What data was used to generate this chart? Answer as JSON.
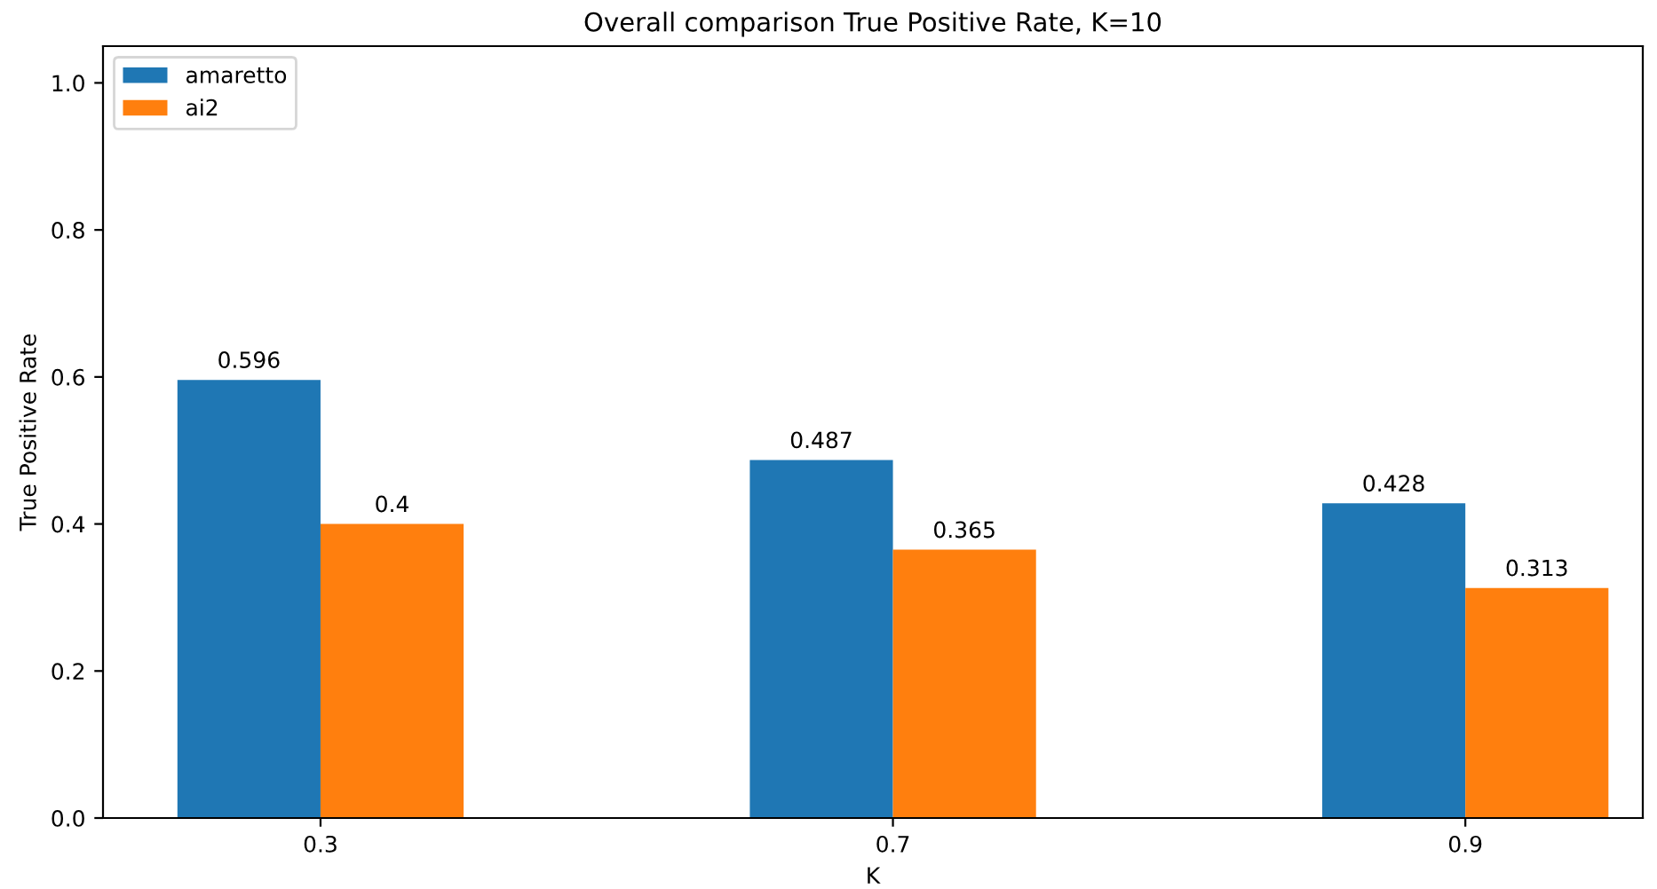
{
  "chart_data": {
    "type": "bar",
    "title": "Overall comparison True Positive Rate, K=10",
    "xlabel": "K",
    "ylabel": "True Positive Rate",
    "categories": [
      "0.3",
      "0.7",
      "0.9"
    ],
    "series": [
      {
        "name": "amaretto",
        "color": "#1f77b4",
        "values": [
          0.596,
          0.487,
          0.428
        ]
      },
      {
        "name": "ai2",
        "color": "#ff7f0e",
        "values": [
          0.4,
          0.365,
          0.313
        ]
      }
    ],
    "ylim": [
      0,
      1.05
    ],
    "yticks": [
      {
        "value": 0,
        "label": "0.0"
      },
      {
        "value": 0.2,
        "label": "0.2"
      },
      {
        "value": 0.4,
        "label": "0.4"
      },
      {
        "value": 0.6,
        "label": "0.6"
      },
      {
        "value": 0.8,
        "label": "0.8"
      },
      {
        "value": 1,
        "label": "1.0"
      }
    ],
    "data_labels": true,
    "legend": "top left",
    "grid": false
  }
}
